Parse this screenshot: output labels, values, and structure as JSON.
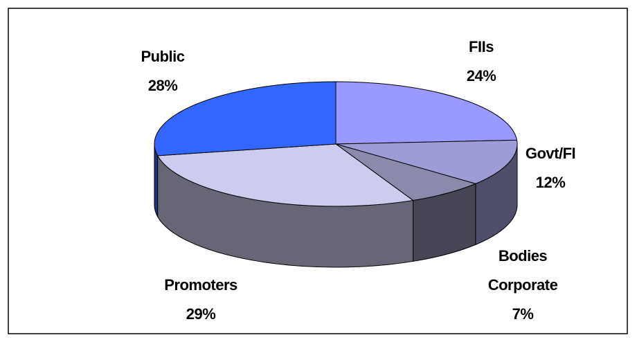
{
  "chart_data": {
    "type": "pie",
    "categories": [
      "FIIs",
      "Govt/FI",
      "Bodies Corporate",
      "Promoters",
      "Public"
    ],
    "values": [
      24,
      12,
      7,
      29,
      28
    ],
    "value_labels": [
      "24%",
      "12%",
      "7%",
      "29%",
      "28%"
    ],
    "colors": [
      "#9999ff",
      "#9c9cd6",
      "#8a8aac",
      "#ccccee",
      "#3366ff"
    ]
  }
}
